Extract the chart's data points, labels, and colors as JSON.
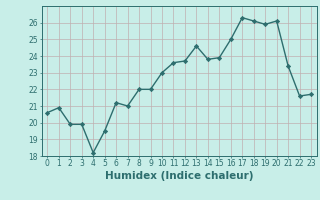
{
  "x": [
    0,
    1,
    2,
    3,
    4,
    5,
    6,
    7,
    8,
    9,
    10,
    11,
    12,
    13,
    14,
    15,
    16,
    17,
    18,
    19,
    20,
    21,
    22,
    23
  ],
  "y": [
    20.6,
    20.9,
    19.9,
    19.9,
    18.2,
    19.5,
    21.2,
    21.0,
    22.0,
    22.0,
    23.0,
    23.6,
    23.7,
    24.6,
    23.8,
    23.9,
    25.0,
    26.3,
    26.1,
    25.9,
    26.1,
    23.4,
    21.6,
    21.7
  ],
  "line_color": "#2d6e6e",
  "marker": "D",
  "marker_size": 2.2,
  "bg_color": "#c8eee8",
  "grid_color": "#c0b0b0",
  "xlabel": "Humidex (Indice chaleur)",
  "ylim": [
    18,
    27
  ],
  "xlim": [
    -0.5,
    23.5
  ],
  "yticks": [
    18,
    19,
    20,
    21,
    22,
    23,
    24,
    25,
    26
  ],
  "xticks": [
    0,
    1,
    2,
    3,
    4,
    5,
    6,
    7,
    8,
    9,
    10,
    11,
    12,
    13,
    14,
    15,
    16,
    17,
    18,
    19,
    20,
    21,
    22,
    23
  ],
  "tick_label_fontsize": 5.5,
  "xlabel_fontsize": 7.5,
  "line_width": 1.0
}
